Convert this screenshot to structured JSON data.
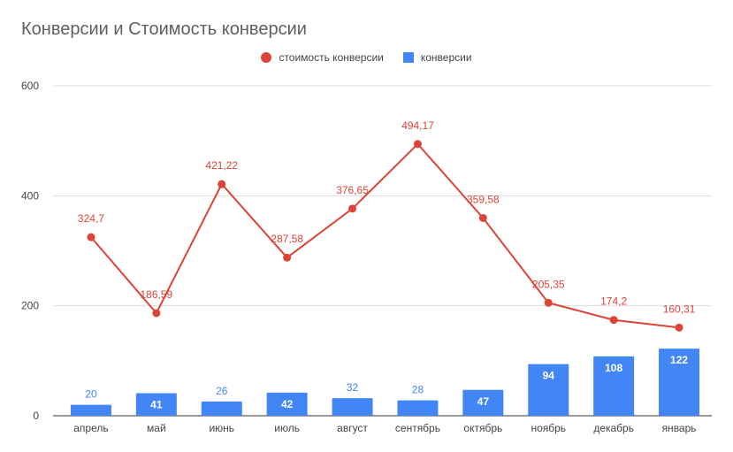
{
  "chart_data": {
    "type": "bar",
    "title": "Конверсии и Стоимость конверсии",
    "categories": [
      "апрель",
      "май",
      "июнь",
      "июль",
      "август",
      "сентябрь",
      "октябрь",
      "ноябрь",
      "декабрь",
      "январь"
    ],
    "series": [
      {
        "name": "стоимость конверсии",
        "type": "line",
        "color": "#db4437",
        "values": [
          324.7,
          186.59,
          421.22,
          287.58,
          376.65,
          494.17,
          359.58,
          205.35,
          174.2,
          160.31
        ],
        "labels": [
          "324,7",
          "186,59",
          "421,22",
          "287,58",
          "376,65",
          "494,17",
          "359,58",
          "205,35",
          "174,2",
          "160,31"
        ]
      },
      {
        "name": "конверсии",
        "type": "bar",
        "color": "#4285f4",
        "values": [
          20,
          41,
          26,
          42,
          32,
          28,
          47,
          94,
          108,
          122
        ],
        "labels": [
          "20",
          "41",
          "26",
          "42",
          "32",
          "28",
          "47",
          "94",
          "108",
          "122"
        ]
      }
    ],
    "ylim": [
      0,
      600
    ],
    "yticks": [
      "0",
      "200",
      "400",
      "600"
    ],
    "grid": true,
    "legend_position": "top"
  }
}
